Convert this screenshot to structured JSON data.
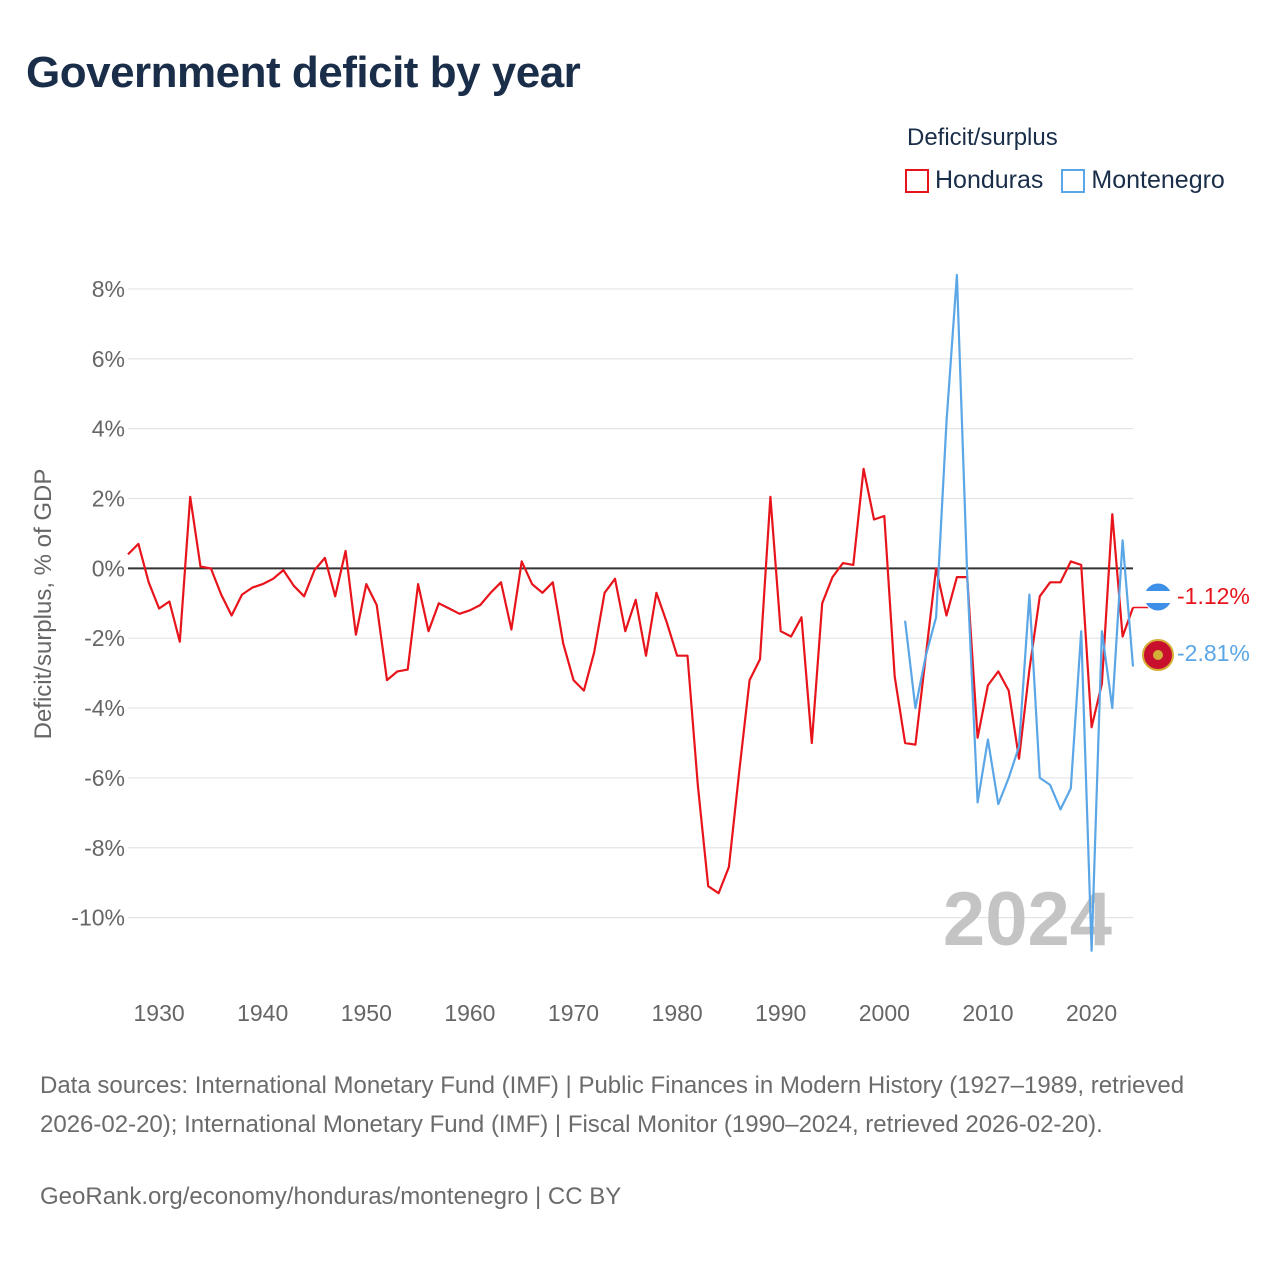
{
  "title": "Government deficit by year",
  "legend": {
    "title": "Deficit/surplus",
    "items": [
      {
        "label": "Honduras",
        "color": "#e8141b"
      },
      {
        "label": "Montenegro",
        "color": "#5aa6e6"
      }
    ]
  },
  "footer": {
    "sources": "Data sources: International Monetary Fund (IMF) | Public Finances in Modern History (1927–1989, retrieved 2026-02-20); International Monetary Fund (IMF) | Fiscal Monitor (1990–2024, retrieved 2026-02-20).",
    "link": "GeoRank.org/economy/honduras/montenegro | CC BY"
  },
  "chart_data": {
    "type": "line",
    "ylabel": "Deficit/surplus, % of GDP",
    "xlabel": "",
    "year_watermark": "2024",
    "xlim": [
      1927,
      2024
    ],
    "ylim": [
      -11.9,
      9.0
    ],
    "x_ticks": [
      1930,
      1940,
      1950,
      1960,
      1970,
      1980,
      1990,
      2000,
      2010,
      2020
    ],
    "y_ticks": [
      8,
      6,
      4,
      2,
      0,
      -2,
      -4,
      -6,
      -8,
      -10
    ],
    "y_tick_labels": [
      "8%",
      "6%",
      "4%",
      "2%",
      "0%",
      "-2%",
      "-4%",
      "-6%",
      "-8%",
      "-10%"
    ],
    "series": [
      {
        "name": "Honduras",
        "color": "#e8141b",
        "end_label": "-1.12%",
        "x": [
          1927,
          1928,
          1929,
          1930,
          1931,
          1932,
          1933,
          1934,
          1935,
          1936,
          1937,
          1938,
          1939,
          1940,
          1941,
          1942,
          1943,
          1944,
          1945,
          1946,
          1947,
          1948,
          1949,
          1950,
          1951,
          1952,
          1953,
          1954,
          1955,
          1956,
          1957,
          1958,
          1959,
          1960,
          1961,
          1962,
          1963,
          1964,
          1965,
          1966,
          1967,
          1968,
          1969,
          1970,
          1971,
          1972,
          1973,
          1974,
          1975,
          1976,
          1977,
          1978,
          1979,
          1980,
          1981,
          1982,
          1983,
          1984,
          1985,
          1986,
          1987,
          1988,
          1989,
          1990,
          1991,
          1992,
          1993,
          1994,
          1995,
          1996,
          1997,
          1998,
          1999,
          2000,
          2001,
          2002,
          2003,
          2004,
          2005,
          2006,
          2007,
          2008,
          2009,
          2010,
          2011,
          2012,
          2013,
          2014,
          2015,
          2016,
          2017,
          2018,
          2019,
          2020,
          2021,
          2022,
          2023,
          2024
        ],
        "values": [
          0.4,
          0.7,
          -0.4,
          -1.15,
          -0.95,
          -2.1,
          2.05,
          0.05,
          0.0,
          -0.75,
          -1.35,
          -0.75,
          -0.55,
          -0.45,
          -0.3,
          -0.05,
          -0.5,
          -0.8,
          -0.05,
          0.3,
          -0.8,
          0.5,
          -1.9,
          -0.45,
          -1.05,
          -3.2,
          -2.95,
          -2.9,
          -0.45,
          -1.8,
          -1.0,
          -1.15,
          -1.3,
          -1.2,
          -1.05,
          -0.7,
          -0.4,
          -1.75,
          0.2,
          -0.45,
          -0.7,
          -0.4,
          -2.15,
          -3.2,
          -3.5,
          -2.4,
          -0.7,
          -0.3,
          -1.8,
          -0.9,
          -2.5,
          -0.7,
          -1.55,
          -2.5,
          -2.5,
          -6.2,
          -9.1,
          -9.3,
          -8.55,
          -5.8,
          -3.2,
          -2.6,
          2.05,
          -1.8,
          -1.95,
          -1.4,
          -5.0,
          -1.0,
          -0.25,
          0.15,
          0.1,
          2.85,
          1.4,
          1.5,
          -3.1,
          -5.0,
          -5.05,
          -2.5,
          0.0,
          -1.35,
          -0.25,
          -0.25,
          -4.85,
          -3.35,
          -2.95,
          -3.5,
          -5.45,
          -2.9,
          -0.8,
          -0.4,
          -0.4,
          0.2,
          0.1,
          -4.55,
          -3.3,
          1.55,
          -1.95,
          -1.12
        ]
      },
      {
        "name": "Montenegro",
        "color": "#5aa6e6",
        "end_label": "-2.81%",
        "x": [
          2002,
          2003,
          2004,
          2005,
          2006,
          2007,
          2008,
          2009,
          2010,
          2011,
          2012,
          2013,
          2014,
          2015,
          2016,
          2017,
          2018,
          2019,
          2020,
          2021,
          2022,
          2023,
          2024
        ],
        "values": [
          -1.5,
          -4.0,
          -2.5,
          -1.4,
          4.2,
          8.4,
          -0.2,
          -6.7,
          -4.9,
          -6.75,
          -6.0,
          -5.1,
          -0.75,
          -6.0,
          -6.2,
          -6.9,
          -6.3,
          -1.8,
          -10.95,
          -1.8,
          -4.0,
          0.8,
          -2.81
        ]
      }
    ]
  }
}
